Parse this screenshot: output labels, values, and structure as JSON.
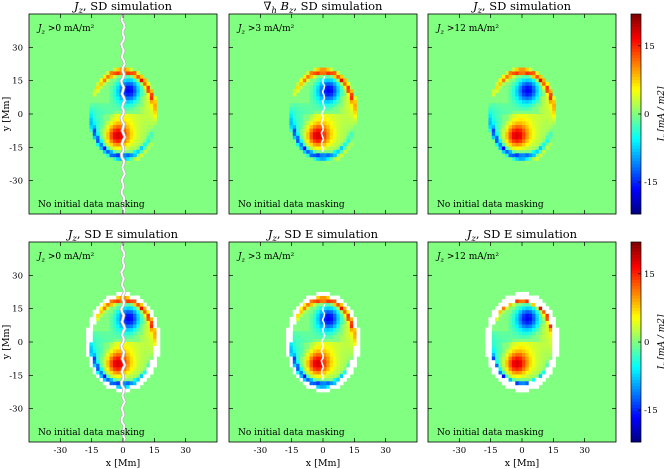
{
  "chart_data": {
    "type": "heatmap",
    "figure_layout": "2 rows x 3 columns of heatmap panels with shared colorbars",
    "panels": [
      {
        "row": 1,
        "col": 1,
        "title": "J_z, SD simulation",
        "threshold_label": "J_z >0 mA/m²",
        "note": "No initial data masking",
        "threshold": 0,
        "variant": "SD"
      },
      {
        "row": 1,
        "col": 2,
        "title": "∇_h B_z, SD simulation",
        "threshold_label": "J_z >3 mA/m²",
        "note": "No initial data masking",
        "threshold": 3,
        "variant": "SD"
      },
      {
        "row": 1,
        "col": 3,
        "title": "J_z, SD simulation",
        "threshold_label": "J_z >12 mA/m²",
        "note": "No initial data masking",
        "threshold": 12,
        "variant": "SD"
      },
      {
        "row": 2,
        "col": 1,
        "title": "J_z, SD E simulation",
        "threshold_label": "J_z >0 mA/m²",
        "note": "No initial data masking",
        "threshold": 0,
        "variant": "SD E"
      },
      {
        "row": 2,
        "col": 2,
        "title": "J_z, SD E simulation",
        "threshold_label": "J_z >3 mA/m²",
        "note": "No initial data masking",
        "threshold": 3,
        "variant": "SD E"
      },
      {
        "row": 2,
        "col": 3,
        "title": "J_z, SD E simulation",
        "threshold_label": "J_z >12 mA/m²",
        "note": "No initial data masking",
        "threshold": 12,
        "variant": "SD E"
      }
    ],
    "x_axis": {
      "label": "x [Mm]",
      "range": [
        -45,
        45
      ],
      "ticks": [
        -30,
        -15,
        0,
        15,
        30
      ]
    },
    "y_axis": {
      "label": "y [Mm]",
      "range": [
        -45,
        45
      ],
      "ticks": [
        -30,
        -15,
        0,
        15,
        30
      ]
    },
    "colorbar": {
      "label": "J_z [mA / m2]",
      "range": [
        -22,
        22
      ],
      "ticks": [
        -15,
        0,
        15
      ],
      "colormap": "jet"
    },
    "features": [
      {
        "name": "positive core",
        "x": -3,
        "y": -10,
        "value": 20
      },
      {
        "name": "negative core",
        "x": 3,
        "y": 11,
        "value": -20
      },
      {
        "name": "positive ring arc (north)",
        "center": [
          0,
          0
        ],
        "radius_x": 15,
        "radius_y": 19,
        "value": 18
      },
      {
        "name": "negative ring arc (south)",
        "center": [
          0,
          0
        ],
        "radius_x": 15,
        "radius_y": 19,
        "value": -16
      }
    ]
  },
  "colors": {
    "background_field": "#80ff80",
    "masked": "#ffffff",
    "mask_line": "#b4b4b4"
  }
}
